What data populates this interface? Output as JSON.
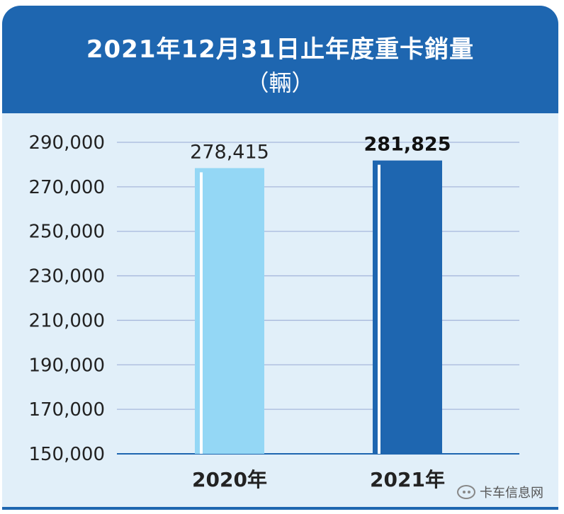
{
  "chart_data": {
    "type": "bar",
    "title": "2021年12月31日止年度重卡銷量",
    "subtitle": "（輛）",
    "categories": [
      "2020年",
      "2021年"
    ],
    "values": [
      278415,
      281825
    ],
    "data_labels": [
      "278,415",
      "281,825"
    ],
    "ylim": [
      150000,
      290000
    ],
    "yticks": [
      150000,
      170000,
      190000,
      210000,
      230000,
      250000,
      270000,
      290000
    ],
    "ytick_labels": [
      "150,000",
      "170,000",
      "190,000",
      "210,000",
      "230,000",
      "250,000",
      "270,000",
      "290,000"
    ],
    "grid": true,
    "xlabel": "",
    "ylabel": "",
    "colors": [
      "#94d7f5",
      "#1e66b0"
    ],
    "gridline_color": "#a7b8dc",
    "axis_color": "#1e66b0"
  },
  "watermark": {
    "text": "卡车信息网",
    "icon": "wechat-icon"
  }
}
